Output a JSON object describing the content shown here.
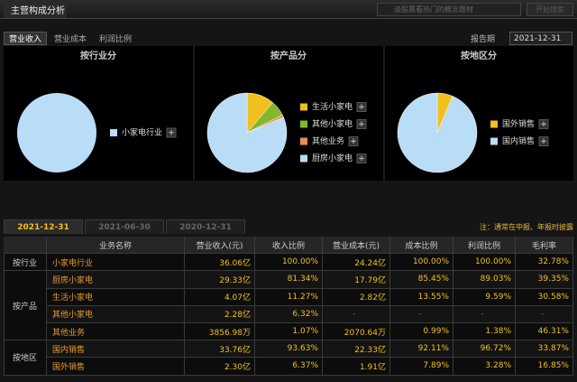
{
  "header": {
    "title": "主营构成分析",
    "search_placeholder": "谈股票看热门的概念题材",
    "search_button": "开始搜索"
  },
  "tabs": [
    "营业收入",
    "营业成本",
    "利润比例"
  ],
  "report_period": {
    "label": "报告期",
    "value": "2021-12-31"
  },
  "pies": [
    {
      "type": "pie",
      "title": "按行业分",
      "items": [
        {
          "name": "小家电行业",
          "color": "#b9dcf7",
          "value": 100
        }
      ]
    },
    {
      "type": "pie",
      "title": "按产品分",
      "items": [
        {
          "name": "生活小家电",
          "color": "#f2c01e",
          "value": 11.27
        },
        {
          "name": "其他小家电",
          "color": "#86b62c",
          "value": 6.32
        },
        {
          "name": "其他业务",
          "color": "#f08a5a",
          "value": 1.07
        },
        {
          "name": "厨房小家电",
          "color": "#b9dcf7",
          "value": 81.34
        }
      ]
    },
    {
      "type": "pie",
      "title": "按地区分",
      "items": [
        {
          "name": "国外销售",
          "color": "#f2c01e",
          "value": 6.37
        },
        {
          "name": "国内销售",
          "color": "#b9dcf7",
          "value": 93.63
        }
      ]
    }
  ],
  "date_tabs": [
    "2021-12-31",
    "2021-06-30",
    "2020-12-31"
  ],
  "note": "注：通常在中报、年报时披露",
  "table": {
    "columns": [
      "业务名称",
      "营业收入(元)",
      "收入比例",
      "营业成本(元)",
      "成本比例",
      "利润比例",
      "毛利率"
    ],
    "groups": [
      {
        "label": "按行业",
        "rows": [
          [
            "小家电行业",
            "36.06亿",
            "100.00%",
            "24.24亿",
            "100.00%",
            "100.00%",
            "32.78%"
          ]
        ]
      },
      {
        "label": "按产品",
        "rows": [
          [
            "厨房小家电",
            "29.33亿",
            "81.34%",
            "17.79亿",
            "85.45%",
            "89.03%",
            "39.35%"
          ],
          [
            "生活小家电",
            "4.07亿",
            "11.27%",
            "2.82亿",
            "13.55%",
            "9.59%",
            "30.58%"
          ],
          [
            "其他小家电",
            "2.28亿",
            "6.32%",
            "-",
            "-",
            "-",
            "-"
          ],
          [
            "其他业务",
            "3856.98万",
            "1.07%",
            "2070.64万",
            "0.99%",
            "1.38%",
            "46.31%"
          ]
        ]
      },
      {
        "label": "按地区",
        "rows": [
          [
            "国内销售",
            "33.76亿",
            "93.63%",
            "22.33亿",
            "92.11%",
            "96.72%",
            "33.87%"
          ],
          [
            "国外销售",
            "2.30亿",
            "6.37%",
            "1.91亿",
            "7.89%",
            "3.28%",
            "16.85%"
          ]
        ]
      }
    ]
  }
}
